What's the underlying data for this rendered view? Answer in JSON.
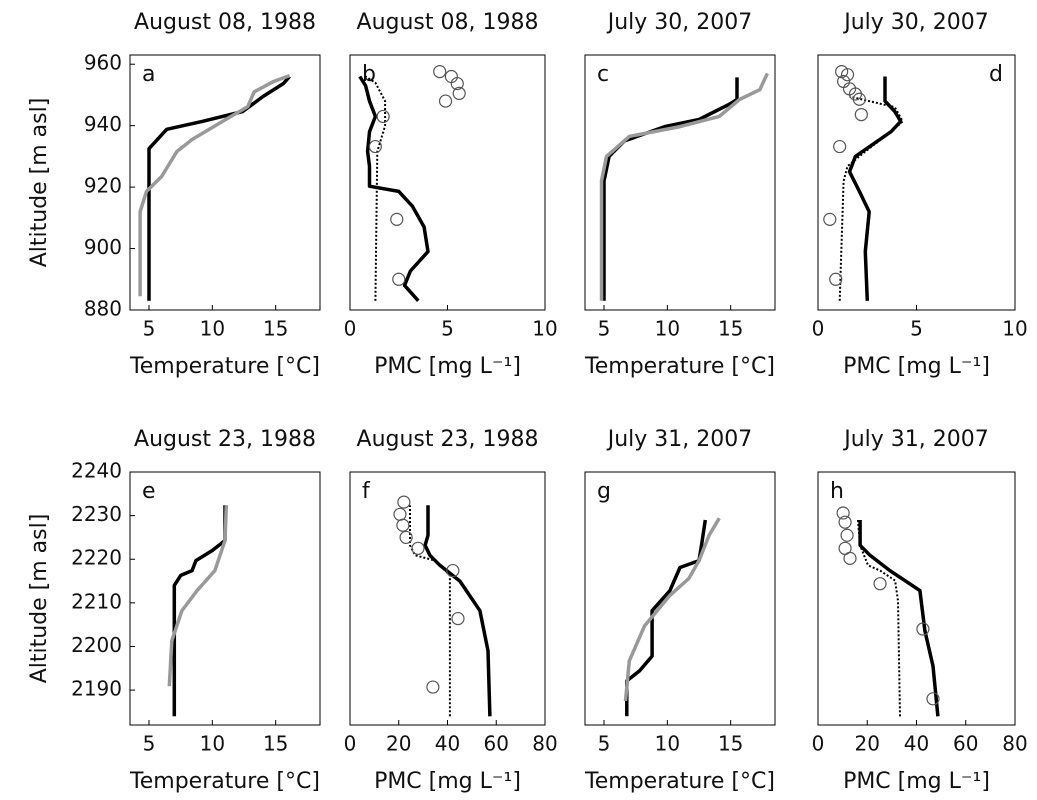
{
  "chart_data": [
    {
      "type": "line",
      "title": "August 08, 1988",
      "xlabel": "Temperature [°C]",
      "ylabel": "Altitude [m asl]",
      "annotation": "a",
      "annotation_corner": "upper left",
      "xlim": [
        3.5,
        18.5
      ],
      "ylim": [
        880,
        963
      ],
      "xticks": [
        5,
        10,
        15
      ],
      "yticks": [
        880,
        900,
        920,
        940,
        960
      ],
      "series": [
        {
          "color": "#000000",
          "style": "solid",
          "x": [
            5.0,
            5.0,
            6.4,
            9.2,
            12.4,
            14.0,
            15.6,
            16.1
          ],
          "y": [
            883,
            932.5,
            938.8,
            941.4,
            944.6,
            949.5,
            953.7,
            956
          ]
        },
        {
          "color": "#999999",
          "style": "solid",
          "x": [
            4.3,
            4.3,
            4.8,
            6.0,
            7.2,
            8.4,
            10.8,
            12.8,
            13.3,
            14.8,
            16.1
          ],
          "y": [
            884.5,
            912,
            918.6,
            923.5,
            931.6,
            935.5,
            941.4,
            946.2,
            951,
            954.3,
            956.3
          ]
        }
      ]
    },
    {
      "type": "line",
      "title": "August 08, 1988",
      "xlabel": "PMC [mg L⁻¹]",
      "annotation": "b",
      "annotation_corner": "upper left",
      "xlim": [
        0,
        10
      ],
      "ylim": [
        880,
        963
      ],
      "xticks": [
        0,
        5,
        10
      ],
      "series": [
        {
          "color": "#000000",
          "style": "solid",
          "x": [
            3.5,
            2.8,
            3.1,
            4.0,
            3.8,
            3.2,
            2.5,
            1.0,
            1.0,
            0.9,
            1.0,
            1.3,
            1.0,
            0.8,
            0.5
          ],
          "y": [
            883,
            888,
            892.7,
            899,
            907,
            913.8,
            918.6,
            920.3,
            926.8,
            931.6,
            938,
            943,
            948,
            953,
            956
          ]
        },
        {
          "color": "#000000",
          "style": "dotted",
          "x": [
            1.3,
            1.4,
            1.8,
            1.8,
            1.3,
            0.8
          ],
          "y": [
            883,
            931.6,
            940,
            948,
            954,
            956
          ]
        },
        {
          "color": "#555555",
          "style": "circle",
          "x": [
            4.6,
            5.2,
            5.5,
            5.6,
            4.9,
            1.7,
            1.3,
            2.4,
            2.5
          ],
          "y": [
            957.6,
            956,
            953.7,
            950.5,
            948,
            943,
            933.2,
            909.5,
            890
          ]
        }
      ]
    },
    {
      "type": "line",
      "title": "July 30, 2007",
      "xlabel": "Temperature [°C]",
      "annotation": "c",
      "annotation_corner": "upper left",
      "xlim": [
        3.5,
        18.5
      ],
      "ylim": [
        880,
        963
      ],
      "xticks": [
        5,
        10,
        15
      ],
      "series": [
        {
          "color": "#000000",
          "style": "solid",
          "x": [
            5.0,
            5.0,
            5.4,
            6.6,
            9.8,
            12.5,
            14.9,
            15.5,
            15.5
          ],
          "y": [
            883,
            922,
            930,
            935,
            939.7,
            942,
            947,
            948.5,
            955.7
          ]
        },
        {
          "color": "#999999",
          "style": "solid",
          "x": [
            4.8,
            4.8,
            5.2,
            7.0,
            11.0,
            14.1,
            15.7,
            17.3,
            17.9
          ],
          "y": [
            883,
            922,
            930,
            936.5,
            939.7,
            943,
            948.5,
            951.7,
            957
          ]
        }
      ]
    },
    {
      "type": "line",
      "title": "July 30, 2007",
      "xlabel": "PMC [mg L⁻¹]",
      "annotation": "d",
      "annotation_corner": "upper right",
      "xlim": [
        0,
        10
      ],
      "ylim": [
        880,
        963
      ],
      "xticks": [
        0,
        5,
        10
      ],
      "series": [
        {
          "color": "#000000",
          "style": "solid",
          "x": [
            2.5,
            2.4,
            2.6,
            2.1,
            1.6,
            1.9,
            3.7,
            4.2,
            3.9,
            3.4,
            3.4
          ],
          "y": [
            883,
            899,
            912,
            918.6,
            925,
            930,
            938,
            941.4,
            944.6,
            948,
            956
          ]
        },
        {
          "color": "#000000",
          "style": "dotted",
          "x": [
            1.1,
            1.3,
            1.5,
            2.4,
            3.7,
            4.3,
            3.9,
            2.6,
            1.6
          ],
          "y": [
            883,
            922,
            926.8,
            931.6,
            938,
            941.4,
            946,
            948,
            949.5
          ]
        },
        {
          "color": "#555555",
          "style": "circle",
          "x": [
            1.2,
            1.5,
            1.3,
            1.6,
            1.9,
            2.1,
            2.2,
            1.1,
            0.6,
            0.9
          ],
          "y": [
            957.6,
            956.6,
            954.4,
            952,
            950.3,
            948.6,
            943.6,
            933.2,
            909.5,
            890
          ]
        }
      ]
    },
    {
      "type": "line",
      "title": "August 23, 1988",
      "xlabel": "Temperature [°C]",
      "ylabel": "Altitude [m asl]",
      "annotation": "e",
      "annotation_corner": "upper left",
      "xlim": [
        3.5,
        18.5
      ],
      "ylim": [
        2182,
        2240
      ],
      "xticks": [
        5,
        10,
        15
      ],
      "yticks": [
        2190,
        2200,
        2210,
        2220,
        2230,
        2240
      ],
      "series": [
        {
          "color": "#000000",
          "style": "solid",
          "x": [
            7.0,
            7.0,
            7.5,
            8.4,
            8.7,
            10.0,
            11.0,
            11.0
          ],
          "y": [
            2184,
            2214,
            2216.3,
            2217.4,
            2219.7,
            2222,
            2224.3,
            2232.4
          ]
        },
        {
          "color": "#999999",
          "style": "solid",
          "x": [
            6.6,
            6.8,
            7.6,
            8.8,
            10.2,
            11.0,
            11.1
          ],
          "y": [
            2190.9,
            2201.3,
            2208.2,
            2212.8,
            2217.4,
            2224.3,
            2232.4
          ]
        }
      ]
    },
    {
      "type": "line",
      "title": "August 23, 1988",
      "xlabel": "PMC [mg L⁻¹]",
      "annotation": "f",
      "annotation_corner": "upper left",
      "xlim": [
        0,
        80
      ],
      "ylim": [
        2182,
        2240
      ],
      "xticks": [
        0,
        20,
        40,
        60,
        80
      ],
      "series": [
        {
          "color": "#000000",
          "style": "solid",
          "x": [
            57.4,
            56.6,
            53.3,
            45.1,
            36.9,
            32.8,
            30.8,
            32.0,
            32.0
          ],
          "y": [
            2184,
            2199,
            2208.2,
            2215,
            2218.6,
            2220.9,
            2223.2,
            2225.5,
            2232.4
          ]
        },
        {
          "color": "#000000",
          "style": "dotted",
          "x": [
            41.0,
            41.0,
            34.9,
            26.7,
            24.6,
            24.6
          ],
          "y": [
            2184,
            2216.3,
            2219.7,
            2220.9,
            2223.2,
            2232.4
          ]
        },
        {
          "color": "#555555",
          "style": "circle",
          "x": [
            22.1,
            20.5,
            21.7,
            23.0,
            27.9,
            42.2,
            44.3,
            34.0
          ],
          "y": [
            2233.1,
            2230.3,
            2227.8,
            2225.0,
            2222.5,
            2217.4,
            2206.4,
            2190.7
          ]
        }
      ]
    },
    {
      "type": "line",
      "title": "July 31, 2007",
      "xlabel": "Temperature [°C]",
      "annotation": "g",
      "annotation_corner": "upper left",
      "xlim": [
        3.5,
        18.5
      ],
      "ylim": [
        2182,
        2240
      ],
      "xticks": [
        5,
        10,
        15
      ],
      "series": [
        {
          "color": "#000000",
          "style": "solid",
          "x": [
            6.8,
            6.8,
            7.8,
            8.8,
            8.8,
            10.2,
            11.0,
            12.5,
            12.7,
            13.0
          ],
          "y": [
            2184,
            2192.1,
            2194.4,
            2197.8,
            2208.2,
            2212.8,
            2218.1,
            2219.7,
            2223.2,
            2229
          ]
        },
        {
          "color": "#999999",
          "style": "solid",
          "x": [
            6.7,
            7.0,
            8.2,
            10.2,
            11.7,
            12.5,
            13.3,
            14.1
          ],
          "y": [
            2187.5,
            2196.7,
            2204.7,
            2211.7,
            2215.6,
            2219.7,
            2225.5,
            2229.4
          ]
        }
      ]
    },
    {
      "type": "line",
      "title": "July 31, 2007",
      "xlabel": "PMC [mg L⁻¹]",
      "annotation": "h",
      "annotation_corner": "upper left",
      "xlim": [
        0,
        80
      ],
      "ylim": [
        2182,
        2240
      ],
      "xticks": [
        0,
        20,
        40,
        60,
        80
      ],
      "series": [
        {
          "color": "#000000",
          "style": "solid",
          "x": [
            48.7,
            46.7,
            43.4,
            41.4,
            29.2,
            21.1,
            17.1,
            17.1
          ],
          "y": [
            2184,
            2195.5,
            2203.6,
            2212.8,
            2217.4,
            2220.9,
            2223.2,
            2229
          ]
        },
        {
          "color": "#000000",
          "style": "dotted",
          "x": [
            33.3,
            32.5,
            31.3,
            25.2,
            20.3,
            17.1,
            16.2
          ],
          "y": [
            2184,
            2210.5,
            2215.1,
            2217.4,
            2218.6,
            2223.2,
            2229
          ]
        },
        {
          "color": "#555555",
          "style": "circle",
          "x": [
            10.2,
            11.0,
            11.8,
            11.0,
            13.0,
            25.2,
            42.6,
            46.7
          ],
          "y": [
            2230.6,
            2228.5,
            2225.5,
            2222.5,
            2220.2,
            2214.4,
            2204,
            2188
          ]
        }
      ]
    }
  ]
}
